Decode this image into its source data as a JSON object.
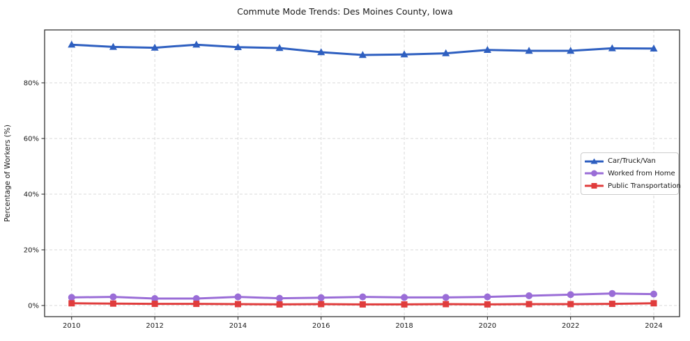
{
  "chart_data": {
    "type": "line",
    "title": "Commute Mode Trends: Des Moines County, Iowa",
    "ylabel": "Percentage of Workers (%)",
    "xlabel": "",
    "x": [
      2010,
      2011,
      2012,
      2013,
      2014,
      2015,
      2016,
      2017,
      2018,
      2019,
      2020,
      2021,
      2022,
      2023,
      2024
    ],
    "series": [
      {
        "name": "Car/Truck/Van",
        "color": "#2e5fc0",
        "marker": "triangle",
        "values": [
          93.7,
          92.9,
          92.6,
          93.7,
          92.8,
          92.5,
          91.0,
          90.0,
          90.2,
          90.6,
          91.8,
          91.5,
          91.5,
          92.4,
          92.3
        ]
      },
      {
        "name": "Worked from Home",
        "color": "#9a6dd7",
        "marker": "circle",
        "values": [
          2.9,
          3.1,
          2.5,
          2.5,
          3.1,
          2.6,
          2.8,
          3.1,
          2.9,
          2.9,
          3.1,
          3.5,
          3.9,
          4.3,
          4.1
        ]
      },
      {
        "name": "Public Transportation",
        "color": "#e03c3c",
        "marker": "square",
        "values": [
          0.8,
          0.7,
          0.6,
          0.6,
          0.5,
          0.4,
          0.5,
          0.4,
          0.4,
          0.5,
          0.4,
          0.5,
          0.5,
          0.6,
          0.8
        ]
      }
    ],
    "xticks": [
      2010,
      2012,
      2014,
      2016,
      2018,
      2020,
      2022,
      2024
    ],
    "yticks": [
      0,
      20,
      40,
      60,
      80
    ],
    "ytick_format": "{v}%",
    "xlim": [
      2009.35,
      2024.62
    ],
    "ylim": [
      -4,
      99
    ],
    "grid": true,
    "legend_position": "center right"
  },
  "colors": {
    "background": "#ffffff",
    "grid": "#d9d9d9",
    "spine": "#222222",
    "text": "#1a1a1a",
    "legend_border": "#cccccc"
  }
}
